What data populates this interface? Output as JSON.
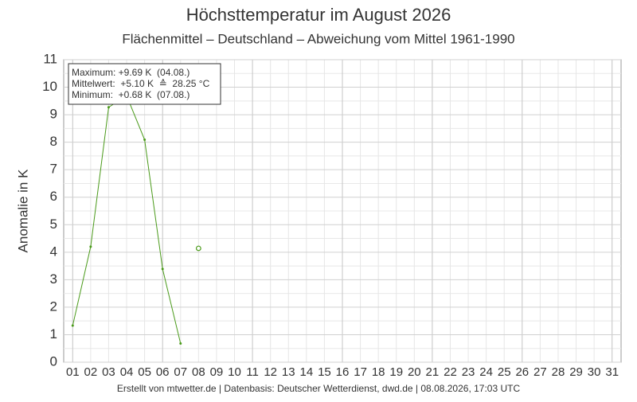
{
  "chart_data": {
    "type": "line",
    "title": "Höchsttemperatur im August 2026",
    "subtitle": "Flächenmittel – Deutschland – Abweichung vom Mittel 1961-1990",
    "y_label": "Anomalie in K",
    "footer": "Erstellt von mtwetter.de | Datenbasis: Deutscher Wetterdienst, dwd.de | 08.08.2026, 17:03 UTC",
    "annotations": [
      "Maximum: +9.69 K  (04.08.)",
      "Mittelwert:  +5.10 K  ≙  28.25 °C",
      "Minimum:  +0.68 K  (07.08.)"
    ],
    "categories": [
      "01",
      "02",
      "03",
      "04",
      "05",
      "06",
      "07",
      "08",
      "09",
      "10",
      "11",
      "12",
      "13",
      "14",
      "15",
      "16",
      "17",
      "18",
      "19",
      "20",
      "21",
      "22",
      "23",
      "24",
      "25",
      "26",
      "27",
      "28",
      "29",
      "30",
      "31"
    ],
    "series": [
      {
        "color": "#4a9a1a",
        "marker": "dot",
        "values": [
          1.33,
          4.2,
          9.27,
          9.69,
          8.09,
          3.39,
          0.68,
          null,
          null,
          null,
          null,
          null,
          null,
          null,
          null,
          null,
          null,
          null,
          null,
          null,
          null,
          null,
          null,
          null,
          null,
          null,
          null,
          null,
          null,
          null,
          null
        ]
      },
      {
        "color": "#4a9a1a",
        "marker": "open",
        "values": [
          null,
          null,
          null,
          null,
          null,
          null,
          null,
          4.14,
          null,
          null,
          null,
          null,
          null,
          null,
          null,
          null,
          null,
          null,
          null,
          null,
          null,
          null,
          null,
          null,
          null,
          null,
          null,
          null,
          null,
          null,
          null
        ]
      }
    ],
    "ylim": [
      0,
      11
    ],
    "yticks": [
      0,
      1,
      2,
      3,
      4,
      5,
      6,
      7,
      8,
      9,
      10,
      11
    ],
    "grid": true
  }
}
